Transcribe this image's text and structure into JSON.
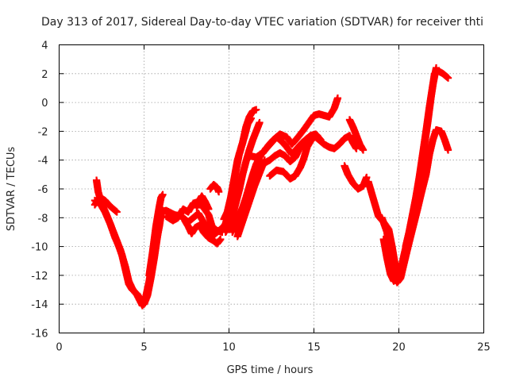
{
  "chart_data": {
    "type": "scatter",
    "title": "Day 313 of 2017, Sidereal Day-to-day VTEC variation (SDTVAR) for receiver thti",
    "xlabel": "GPS time / hours",
    "ylabel": "SDTVAR / TECUs",
    "xlim": [
      0,
      25
    ],
    "ylim": [
      -16,
      4
    ],
    "xticks": [
      0,
      5,
      10,
      15,
      20,
      25
    ],
    "yticks": [
      -16,
      -14,
      -12,
      -10,
      -8,
      -6,
      -4,
      -2,
      0,
      2,
      4
    ],
    "grid": true,
    "legend": "none",
    "marker": "plus",
    "color": "#ff0000",
    "series": [
      {
        "points": [
          [
            2.2,
            -5.4
          ],
          [
            2.3,
            -6.2
          ],
          [
            2.5,
            -7.0
          ],
          [
            2.8,
            -7.8
          ],
          [
            3.1,
            -8.7
          ],
          [
            3.4,
            -9.6
          ],
          [
            3.7,
            -10.6
          ],
          [
            3.9,
            -11.6
          ],
          [
            4.1,
            -12.6
          ],
          [
            4.3,
            -13.0
          ],
          [
            4.6,
            -13.3
          ],
          [
            4.8,
            -13.7
          ],
          [
            5.0,
            -14.0
          ],
          [
            5.2,
            -13.4
          ],
          [
            5.4,
            -12.2
          ],
          [
            5.6,
            -10.8
          ],
          [
            5.8,
            -9.2
          ],
          [
            5.95,
            -7.9
          ],
          [
            6.1,
            -7.5
          ]
        ]
      },
      {
        "points": [
          [
            2.1,
            -6.8
          ],
          [
            2.4,
            -7.0
          ],
          [
            2.7,
            -7.6
          ],
          [
            3.0,
            -8.4
          ],
          [
            3.3,
            -9.4
          ],
          [
            3.6,
            -10.2
          ],
          [
            3.9,
            -11.4
          ],
          [
            4.1,
            -12.4
          ],
          [
            4.3,
            -12.9
          ],
          [
            4.6,
            -13.4
          ],
          [
            4.9,
            -14.1
          ],
          [
            5.1,
            -13.5
          ],
          [
            5.3,
            -12.4
          ],
          [
            5.5,
            -11.0
          ],
          [
            5.7,
            -9.8
          ],
          [
            5.9,
            -8.6
          ],
          [
            6.0,
            -7.8
          ]
        ]
      },
      {
        "points": [
          [
            2.1,
            -7.1
          ],
          [
            2.4,
            -6.6
          ],
          [
            2.7,
            -6.8
          ],
          [
            3.0,
            -7.2
          ],
          [
            3.4,
            -7.6
          ]
        ]
      },
      {
        "points": [
          [
            5.3,
            -12.0
          ],
          [
            5.5,
            -10.4
          ],
          [
            5.7,
            -8.6
          ],
          [
            5.9,
            -7.2
          ],
          [
            6.0,
            -6.6
          ],
          [
            6.1,
            -6.4
          ]
        ]
      },
      {
        "points": [
          [
            5.9,
            -7.6
          ],
          [
            6.3,
            -7.5
          ],
          [
            6.8,
            -7.8
          ],
          [
            7.2,
            -7.9
          ],
          [
            7.6,
            -8.3
          ],
          [
            7.9,
            -8.0
          ],
          [
            8.2,
            -7.7
          ],
          [
            8.5,
            -8.3
          ],
          [
            8.8,
            -8.8
          ],
          [
            9.1,
            -9.2
          ],
          [
            9.4,
            -8.9
          ],
          [
            9.7,
            -8.6
          ]
        ]
      },
      {
        "points": [
          [
            6.3,
            -7.9
          ],
          [
            6.7,
            -8.2
          ],
          [
            7.0,
            -8.0
          ],
          [
            7.3,
            -7.4
          ],
          [
            7.6,
            -7.6
          ],
          [
            7.9,
            -7.0
          ],
          [
            8.2,
            -6.9
          ],
          [
            8.5,
            -7.3
          ],
          [
            8.8,
            -7.8
          ],
          [
            9.0,
            -8.6
          ],
          [
            9.3,
            -8.9
          ],
          [
            9.6,
            -9.0
          ]
        ]
      },
      {
        "points": [
          [
            7.4,
            -8.2
          ],
          [
            7.6,
            -8.6
          ],
          [
            7.8,
            -9.1
          ],
          [
            8.0,
            -8.7
          ],
          [
            8.3,
            -8.5
          ],
          [
            8.5,
            -9.0
          ],
          [
            8.8,
            -9.4
          ],
          [
            9.1,
            -9.6
          ],
          [
            9.3,
            -9.8
          ],
          [
            9.5,
            -9.5
          ]
        ]
      },
      {
        "points": [
          [
            8.1,
            -7.3
          ],
          [
            8.2,
            -6.9
          ],
          [
            8.4,
            -6.5
          ],
          [
            8.6,
            -6.9
          ],
          [
            8.8,
            -7.4
          ]
        ]
      },
      {
        "points": [
          [
            8.9,
            -6.0
          ],
          [
            9.1,
            -5.7
          ],
          [
            9.3,
            -5.9
          ],
          [
            9.4,
            -6.2
          ]
        ]
      },
      {
        "points": [
          [
            9.6,
            -8.8
          ],
          [
            9.8,
            -8.4
          ],
          [
            10.0,
            -7.5
          ],
          [
            10.2,
            -6.2
          ],
          [
            10.4,
            -4.8
          ],
          [
            10.6,
            -3.6
          ],
          [
            10.8,
            -2.8
          ],
          [
            11.0,
            -1.7
          ],
          [
            11.2,
            -1.0
          ],
          [
            11.4,
            -0.6
          ],
          [
            11.6,
            -0.5
          ]
        ]
      },
      {
        "points": [
          [
            9.7,
            -8.1
          ],
          [
            9.9,
            -7.6
          ],
          [
            10.1,
            -6.6
          ],
          [
            10.3,
            -5.3
          ],
          [
            10.5,
            -4.0
          ],
          [
            10.7,
            -3.2
          ],
          [
            10.9,
            -2.4
          ],
          [
            11.1,
            -1.5
          ],
          [
            11.3,
            -1.1
          ]
        ]
      },
      {
        "points": [
          [
            9.8,
            -9.0
          ],
          [
            10.0,
            -8.6
          ],
          [
            10.2,
            -7.9
          ],
          [
            10.4,
            -7.0
          ],
          [
            10.6,
            -6.1
          ],
          [
            10.8,
            -5.0
          ],
          [
            11.0,
            -4.1
          ],
          [
            11.2,
            -3.3
          ],
          [
            11.4,
            -2.6
          ],
          [
            11.6,
            -2.0
          ],
          [
            11.8,
            -1.4
          ]
        ]
      },
      {
        "points": [
          [
            10.2,
            -9.0
          ],
          [
            10.4,
            -8.5
          ],
          [
            10.6,
            -7.8
          ],
          [
            10.8,
            -7.3
          ],
          [
            11.0,
            -6.6
          ],
          [
            11.2,
            -5.8
          ],
          [
            11.4,
            -5.0
          ],
          [
            11.6,
            -4.3
          ],
          [
            11.8,
            -3.8
          ],
          [
            12.0,
            -3.4
          ]
        ]
      },
      {
        "points": [
          [
            10.5,
            -9.3
          ],
          [
            10.7,
            -8.6
          ],
          [
            10.9,
            -7.9
          ],
          [
            11.1,
            -7.2
          ],
          [
            11.3,
            -6.5
          ],
          [
            11.5,
            -5.8
          ],
          [
            11.7,
            -5.2
          ],
          [
            11.9,
            -4.6
          ],
          [
            12.1,
            -4.0
          ]
        ]
      },
      {
        "points": [
          [
            11.2,
            -3.7
          ],
          [
            11.6,
            -3.8
          ],
          [
            12.0,
            -3.5
          ],
          [
            12.3,
            -3.0
          ],
          [
            12.6,
            -2.6
          ],
          [
            13.0,
            -2.2
          ],
          [
            13.4,
            -2.4
          ],
          [
            13.7,
            -2.9
          ],
          [
            14.0,
            -2.5
          ],
          [
            14.4,
            -1.9
          ],
          [
            14.7,
            -1.4
          ],
          [
            15.0,
            -0.9
          ],
          [
            15.3,
            -0.8
          ],
          [
            15.6,
            -0.9
          ],
          [
            15.9,
            -1.0
          ],
          [
            16.2,
            -0.4
          ],
          [
            16.4,
            0.3
          ]
        ]
      },
      {
        "points": [
          [
            11.9,
            -3.6
          ],
          [
            12.2,
            -3.2
          ],
          [
            12.5,
            -2.8
          ],
          [
            12.8,
            -2.4
          ],
          [
            13.1,
            -2.7
          ],
          [
            13.4,
            -3.1
          ],
          [
            13.7,
            -3.6
          ],
          [
            14.0,
            -3.2
          ],
          [
            14.3,
            -2.8
          ],
          [
            14.6,
            -2.5
          ],
          [
            15.0,
            -2.3
          ],
          [
            15.3,
            -2.6
          ],
          [
            15.6,
            -2.9
          ],
          [
            15.9,
            -3.1
          ],
          [
            16.2,
            -3.2
          ],
          [
            16.5,
            -2.9
          ],
          [
            16.8,
            -2.5
          ],
          [
            17.1,
            -2.3
          ],
          [
            17.3,
            -2.8
          ],
          [
            17.5,
            -3.2
          ]
        ]
      },
      {
        "points": [
          [
            12.1,
            -4.2
          ],
          [
            12.4,
            -4.0
          ],
          [
            12.7,
            -3.7
          ],
          [
            13.0,
            -3.5
          ],
          [
            13.3,
            -3.7
          ],
          [
            13.6,
            -4.1
          ],
          [
            13.9,
            -3.8
          ],
          [
            14.2,
            -3.1
          ],
          [
            14.5,
            -2.6
          ],
          [
            14.8,
            -2.3
          ],
          [
            15.1,
            -2.2
          ],
          [
            15.4,
            -2.6
          ]
        ]
      },
      {
        "points": [
          [
            12.4,
            -5.1
          ],
          [
            12.8,
            -4.7
          ],
          [
            13.2,
            -4.8
          ],
          [
            13.6,
            -5.3
          ],
          [
            13.9,
            -5.1
          ],
          [
            14.2,
            -4.5
          ],
          [
            14.4,
            -3.9
          ],
          [
            14.6,
            -3.1
          ],
          [
            14.9,
            -2.5
          ],
          [
            15.2,
            -2.3
          ]
        ]
      },
      {
        "points": [
          [
            17.1,
            -1.2
          ],
          [
            17.3,
            -1.7
          ],
          [
            17.5,
            -2.3
          ],
          [
            17.7,
            -2.9
          ],
          [
            17.9,
            -3.3
          ]
        ]
      },
      {
        "points": [
          [
            16.8,
            -4.4
          ],
          [
            17.0,
            -5.0
          ],
          [
            17.3,
            -5.6
          ],
          [
            17.6,
            -6.0
          ],
          [
            17.9,
            -5.8
          ],
          [
            18.1,
            -5.2
          ]
        ]
      },
      {
        "points": [
          [
            18.2,
            -5.5
          ],
          [
            18.4,
            -6.3
          ],
          [
            18.6,
            -7.1
          ],
          [
            18.8,
            -7.9
          ],
          [
            19.1,
            -8.3
          ],
          [
            19.4,
            -8.8
          ],
          [
            19.6,
            -10.0
          ],
          [
            19.8,
            -11.4
          ],
          [
            20.0,
            -12.0
          ],
          [
            20.2,
            -11.6
          ],
          [
            20.5,
            -10.2
          ],
          [
            20.8,
            -8.8
          ],
          [
            21.1,
            -7.4
          ],
          [
            21.3,
            -6.4
          ],
          [
            21.6,
            -5.0
          ],
          [
            21.8,
            -3.6
          ],
          [
            22.0,
            -2.6
          ],
          [
            22.2,
            -1.9
          ],
          [
            22.5,
            -2.0
          ],
          [
            22.7,
            -2.6
          ],
          [
            22.9,
            -3.3
          ]
        ]
      },
      {
        "points": [
          [
            19.0,
            -8.0
          ],
          [
            19.3,
            -9.0
          ],
          [
            19.5,
            -10.6
          ],
          [
            19.7,
            -12.0
          ],
          [
            19.9,
            -12.5
          ],
          [
            20.1,
            -12.2
          ],
          [
            20.3,
            -11.2
          ],
          [
            20.5,
            -10.2
          ],
          [
            20.7,
            -9.2
          ],
          [
            20.9,
            -7.8
          ],
          [
            21.1,
            -6.2
          ],
          [
            21.3,
            -4.6
          ],
          [
            21.5,
            -3.0
          ],
          [
            21.7,
            -1.4
          ],
          [
            21.9,
            0.4
          ],
          [
            22.1,
            2.0
          ],
          [
            22.3,
            2.2
          ],
          [
            22.6,
            2.0
          ],
          [
            22.9,
            1.7
          ]
        ]
      },
      {
        "points": [
          [
            19.1,
            -9.5
          ],
          [
            19.3,
            -10.8
          ],
          [
            19.5,
            -11.9
          ],
          [
            19.7,
            -12.4
          ],
          [
            19.9,
            -12.2
          ],
          [
            20.1,
            -11.7
          ],
          [
            20.3,
            -10.6
          ],
          [
            20.5,
            -9.6
          ],
          [
            20.7,
            -8.6
          ],
          [
            20.9,
            -7.3
          ],
          [
            21.1,
            -6.0
          ],
          [
            21.3,
            -4.6
          ],
          [
            21.5,
            -3.3
          ]
        ]
      },
      {
        "points": [
          [
            20.4,
            -10.0
          ],
          [
            20.6,
            -9.0
          ],
          [
            20.8,
            -7.8
          ],
          [
            21.0,
            -6.6
          ],
          [
            21.2,
            -5.2
          ],
          [
            21.4,
            -3.6
          ],
          [
            21.6,
            -2.0
          ],
          [
            21.8,
            -0.3
          ],
          [
            22.0,
            1.2
          ],
          [
            22.2,
            2.4
          ]
        ]
      }
    ]
  }
}
